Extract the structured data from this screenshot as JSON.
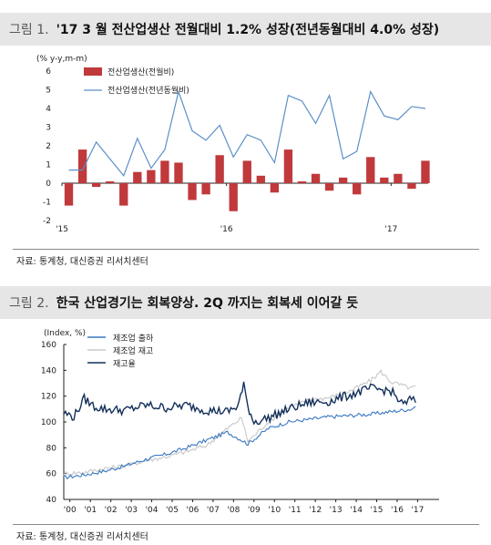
{
  "figure1": {
    "number": "그림 1.",
    "title": "'17 3 월 전산업생산 전월대비 1.2% 성장(전년동월대비 4.0% 성장)",
    "source": "자료: 통계청, 대신증권 리서치센터"
  },
  "figure2": {
    "number": "그림 2.",
    "title": "한국 산업경기는 회복양상. 2Q 까지는 회복세 이어갈 듯",
    "source": "자료: 통계청, 대신증권 리서치센터"
  },
  "colors": {
    "bar": "#c0393b",
    "line1": "#5b8fc8",
    "ship": "#3a78c2",
    "inv": "#c8c8c8",
    "ratio": "#14305a"
  },
  "chart_data": [
    {
      "type": "bar+line",
      "unit_label": "(% y-y,m-m)",
      "ylim": [
        -2,
        6
      ],
      "yticks": [
        "6",
        "5",
        "4",
        "3",
        "2",
        "1",
        "0",
        "-1",
        "-2"
      ],
      "x_ticks": [
        {
          "label": "'15",
          "index": 0
        },
        {
          "label": "'16",
          "index": 12
        },
        {
          "label": "'17",
          "index": 24
        }
      ],
      "series": [
        {
          "name": "전산업생산(전월비)",
          "kind": "bar",
          "values": [
            -1.2,
            1.8,
            -0.2,
            0.1,
            -1.2,
            0.6,
            0.7,
            1.2,
            1.1,
            -0.9,
            -0.6,
            1.5,
            -1.5,
            1.2,
            0.4,
            -0.5,
            1.8,
            0.1,
            0.5,
            -0.4,
            0.3,
            -0.6,
            1.4,
            0.3,
            0.5,
            -0.3,
            1.2
          ]
        },
        {
          "name": "전산업생산(전년동월비)",
          "kind": "line",
          "values": [
            0.7,
            0.7,
            2.2,
            1.3,
            0.4,
            2.4,
            0.8,
            1.8,
            4.9,
            2.8,
            2.3,
            3.1,
            1.4,
            2.6,
            2.3,
            1.1,
            4.7,
            4.4,
            3.2,
            4.7,
            1.3,
            1.7,
            4.9,
            3.6,
            3.4,
            4.1,
            4.0
          ]
        }
      ]
    },
    {
      "type": "line",
      "unit_label": "(Index, %)",
      "ylim": [
        40,
        160
      ],
      "yticks": [
        "160",
        "140",
        "120",
        "100",
        "80",
        "60",
        "40"
      ],
      "categories": [
        "'00",
        "'01",
        "'02",
        "'03",
        "'04",
        "'05",
        "'06",
        "'07",
        "'08",
        "'09",
        "'10",
        "'11",
        "'12",
        "'13",
        "'14",
        "'15",
        "'16",
        "'17"
      ],
      "x_start": 2000,
      "series": [
        {
          "name": "제조업 출하",
          "x": [
            2000,
            2001,
            2002,
            2003,
            2004,
            2005,
            2006,
            2007,
            2008,
            2008.7,
            2009,
            2010,
            2011,
            2012,
            2013,
            2014,
            2015,
            2016,
            2017,
            2017.2
          ],
          "y": [
            57,
            59,
            62,
            66,
            71,
            75,
            80,
            86,
            92,
            86,
            83,
            95,
            100,
            102,
            104,
            105,
            106,
            108,
            110,
            112
          ]
        },
        {
          "name": "제조업 재고",
          "x": [
            2000,
            2001,
            2002,
            2003,
            2004,
            2005,
            2006,
            2007,
            2008,
            2008.7,
            2009,
            2010,
            2011,
            2012,
            2013,
            2014,
            2015,
            2015.5,
            2016,
            2017,
            2017.2
          ],
          "y": [
            60,
            61,
            64,
            66,
            70,
            73,
            77,
            82,
            95,
            103,
            85,
            100,
            111,
            117,
            119,
            124,
            132,
            139,
            131,
            126,
            128
          ]
        },
        {
          "name": "재고율",
          "x": [
            2000,
            2000.5,
            2001,
            2001.5,
            2002,
            2003,
            2004,
            2005,
            2006,
            2007,
            2008,
            2008.5,
            2008.8,
            2009,
            2009.3,
            2010,
            2011,
            2012,
            2013,
            2014,
            2015,
            2016,
            2016.6,
            2017,
            2017.2
          ],
          "y": [
            107,
            104,
            118,
            112,
            110,
            109,
            113,
            111,
            113,
            109,
            108,
            112,
            128,
            112,
            100,
            103,
            110,
            115,
            116,
            121,
            126,
            124,
            113,
            118,
            115
          ]
        }
      ]
    }
  ]
}
